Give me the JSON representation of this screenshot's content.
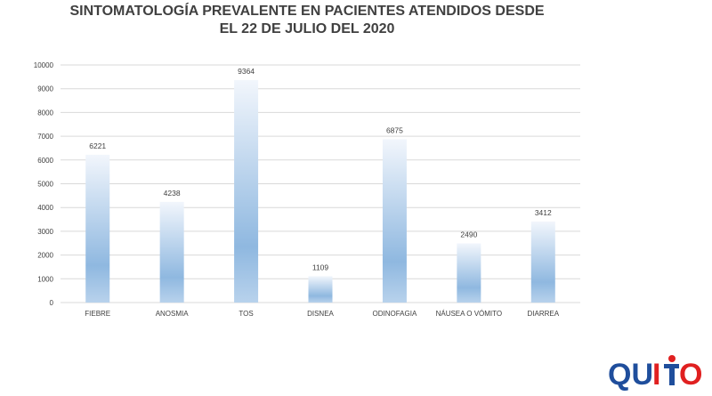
{
  "chart_data": {
    "type": "bar",
    "title": "SINTOMATOLOGÍA PREVALENTE EN PACIENTES ATENDIDOS DESDE EL 22 DE JULIO DEL 2020",
    "title_lines": [
      "SINTOMATOLOGÍA PREVALENTE EN PACIENTES ATENDIDOS DESDE",
      "EL 22 DE JULIO DEL 2020"
    ],
    "categories": [
      "FIEBRE",
      "ANOSMIA",
      "TOS",
      "DISNEA",
      "ODINOFAGIA",
      "NÁUSEA O VÓMITO",
      "DIARREA"
    ],
    "values": [
      6221,
      4238,
      9364,
      1109,
      6875,
      2490,
      3412
    ],
    "data_labels": [
      "6221",
      "4238",
      "9364",
      "1109",
      "6875",
      "2490",
      "3412"
    ],
    "xlabel": "",
    "ylabel": "",
    "ylim": [
      0,
      10000
    ],
    "yticks": [
      0,
      1000,
      2000,
      3000,
      4000,
      5000,
      6000,
      7000,
      8000,
      9000,
      10000
    ],
    "ytick_labels": [
      "0",
      "1000",
      "2000",
      "3000",
      "4000",
      "5000",
      "6000",
      "7000",
      "8000",
      "9000",
      "10000"
    ],
    "grid": true,
    "legend": "none",
    "bar_color_top": "#f2f6fc",
    "bar_color_mid": "#8fb8e0",
    "gridline_color": "#d9d9d9"
  },
  "logo": {
    "text": "QUITO",
    "blue": "#1f4e9c",
    "red": "#e02020"
  }
}
